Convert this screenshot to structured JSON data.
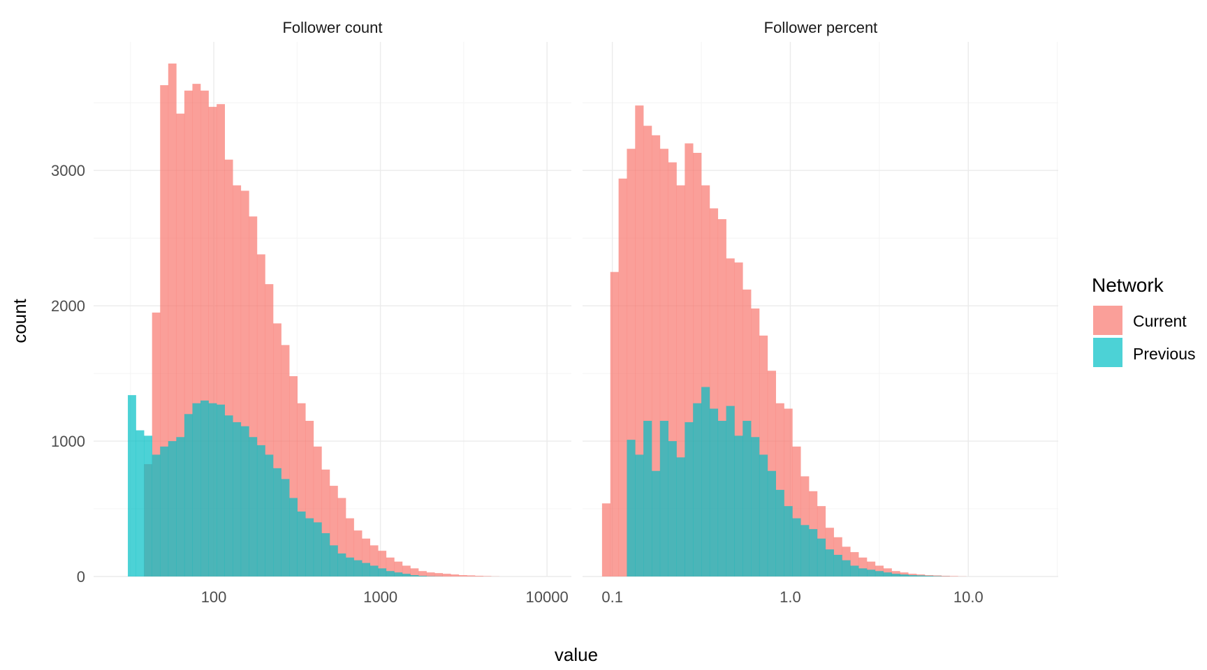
{
  "chart_data": {
    "type": "histogram",
    "xlabel": "value",
    "ylabel": "count",
    "ylim": [
      0,
      3950
    ],
    "y_ticks": [
      0,
      1000,
      2000,
      3000
    ],
    "y_tick_labels": [
      "0",
      "1000",
      "2000",
      "3000"
    ],
    "legend": {
      "title": "Network",
      "position": "right",
      "items": [
        {
          "label": "Current",
          "color": "#F8766D"
        },
        {
          "label": "Previous",
          "color": "#00BFC4"
        }
      ]
    },
    "panels": [
      {
        "strip": "Follower count",
        "x_scale": "log10",
        "x_ticks": [
          100,
          1000,
          10000
        ],
        "x_tick_labels": [
          "100",
          "1000",
          "10000"
        ],
        "x_range": [
          19,
          14000
        ],
        "bin_edges_start": 30.5,
        "bin_ratio": 1.118,
        "series": [
          {
            "name": "Current",
            "counts": [
              0,
              0,
              830,
              1950,
              3630,
              3790,
              3420,
              3590,
              3640,
              3590,
              3470,
              3490,
              3080,
              2890,
              2850,
              2660,
              2380,
              2160,
              1870,
              1710,
              1480,
              1280,
              1150,
              960,
              790,
              670,
              580,
              430,
              340,
              280,
              230,
              190,
              140,
              110,
              80,
              60,
              40,
              30,
              25,
              20,
              15,
              10,
              8,
              5,
              3,
              1
            ]
          },
          {
            "name": "Previous",
            "counts": [
              1340,
              1080,
              1040,
              900,
              960,
              1000,
              1030,
              1200,
              1280,
              1300,
              1280,
              1270,
              1190,
              1140,
              1110,
              1030,
              970,
              900,
              800,
              720,
              580,
              480,
              430,
              400,
              320,
              230,
              170,
              140,
              120,
              100,
              80,
              60,
              40,
              30,
              20,
              10,
              5,
              2,
              1,
              0,
              0,
              0,
              0,
              0,
              0,
              0
            ]
          }
        ]
      },
      {
        "strip": "Follower percent",
        "x_scale": "log10",
        "x_ticks": [
          0.1,
          1.0,
          10.0
        ],
        "x_tick_labels": [
          "0.1",
          "1.0",
          "10.0"
        ],
        "x_range": [
          0.068,
          32
        ],
        "bin_edges_start": 0.0875,
        "bin_ratio": 1.113,
        "series": [
          {
            "name": "Current",
            "counts": [
              540,
              2250,
              2940,
              3160,
              3480,
              3330,
              3260,
              3160,
              3060,
              2890,
              3200,
              3130,
              2890,
              2720,
              2640,
              2350,
              2320,
              2120,
              1980,
              1780,
              1520,
              1280,
              1240,
              960,
              740,
              630,
              520,
              360,
              290,
              220,
              180,
              140,
              110,
              80,
              60,
              40,
              30,
              20,
              15,
              10,
              8,
              5,
              3,
              1
            ]
          },
          {
            "name": "Previous",
            "counts": [
              0,
              0,
              0,
              1010,
              900,
              1150,
              780,
              1150,
              1000,
              880,
              1140,
              1280,
              1400,
              1240,
              1150,
              1260,
              1040,
              1150,
              1030,
              900,
              780,
              640,
              520,
              430,
              380,
              350,
              280,
              200,
              160,
              120,
              80,
              60,
              50,
              40,
              30,
              20,
              15,
              10,
              8,
              5,
              3,
              1,
              0,
              0
            ]
          }
        ]
      }
    ]
  }
}
